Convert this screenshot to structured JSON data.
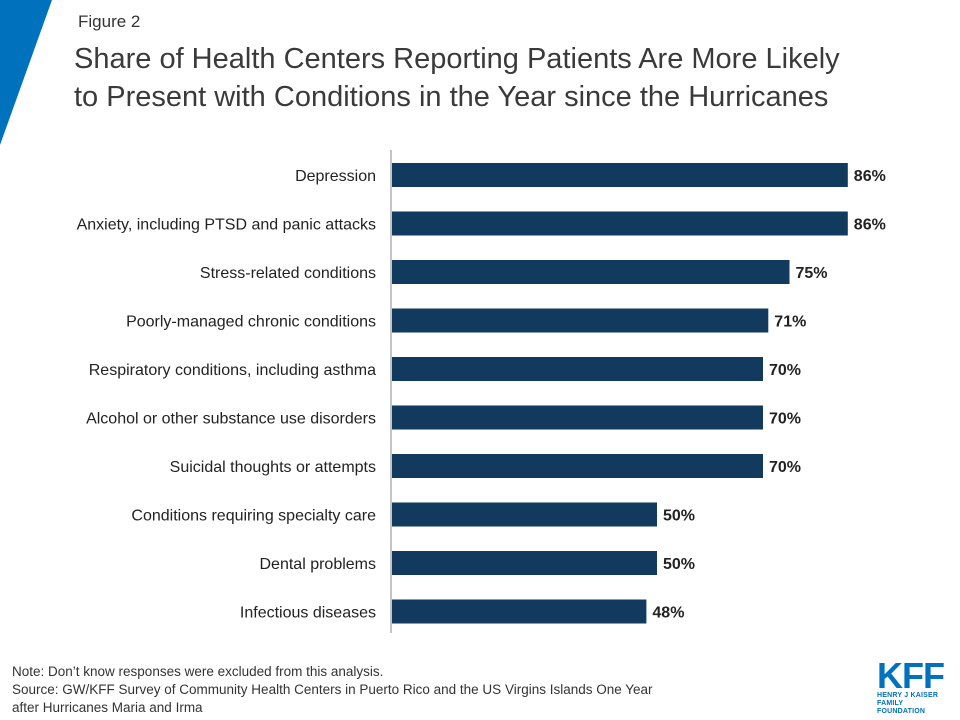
{
  "figure_label": "Figure 2",
  "title_line1": "Share of Health Centers Reporting Patients Are More Likely",
  "title_line2": "to Present with Conditions in the Year since the Hurricanes",
  "note": "Note: Don’t know responses were  excluded from this analysis.",
  "source_line1": "Source: GW/KFF Survey of Community Health Centers in Puerto Rico and the US Virgins Islands One Year",
  "source_line2": "after Hurricanes Maria and Irma",
  "logo": {
    "mark": "KFF",
    "line1": "HENRY J KAISER",
    "line2": "FAMILY FOUNDATION"
  },
  "colors": {
    "bar": "#123a5e",
    "accent": "#0071bc",
    "axis": "#8a8a8a"
  },
  "chart_data": {
    "type": "bar",
    "orientation": "horizontal",
    "categories": [
      "Depression",
      "Anxiety, including PTSD and panic attacks",
      "Stress-related conditions",
      "Poorly-managed chronic conditions",
      "Respiratory conditions, including asthma",
      "Alcohol or other substance use disorders",
      "Suicidal thoughts or attempts",
      "Conditions requiring specialty care",
      "Dental problems",
      "Infectious diseases"
    ],
    "values": [
      86,
      86,
      75,
      71,
      70,
      70,
      70,
      50,
      50,
      48
    ],
    "value_labels": [
      "86%",
      "86%",
      "75%",
      "71%",
      "70%",
      "70%",
      "70%",
      "50%",
      "50%",
      "48%"
    ],
    "xlim": [
      0,
      100
    ],
    "grid": false,
    "legend": "none"
  }
}
